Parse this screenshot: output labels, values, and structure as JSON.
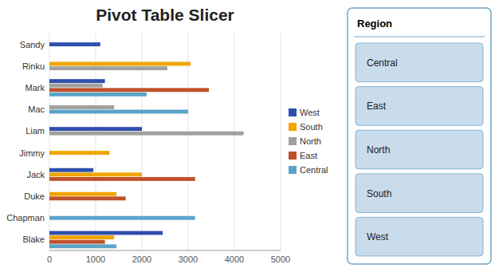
{
  "chart_data": {
    "type": "bar",
    "orientation": "horizontal",
    "title": "Pivot Table Slicer",
    "categories": [
      "Sandy",
      "Rinku",
      "Mark",
      "Mac",
      "Liam",
      "Jimmy",
      "Jack",
      "Duke",
      "Chapman",
      "Blake"
    ],
    "series": [
      {
        "name": "West",
        "color": "#2E4FAE",
        "values": [
          1100,
          0,
          1200,
          0,
          2000,
          0,
          950,
          0,
          0,
          2450
        ]
      },
      {
        "name": "South",
        "color": "#F0A500",
        "values": [
          0,
          3050,
          0,
          0,
          0,
          1300,
          2000,
          1450,
          0,
          1400
        ]
      },
      {
        "name": "North",
        "color": "#A0A0A0",
        "values": [
          0,
          2550,
          1150,
          1400,
          4200,
          0,
          0,
          0,
          0,
          0
        ]
      },
      {
        "name": "East",
        "color": "#C0522B",
        "values": [
          0,
          0,
          3450,
          0,
          0,
          0,
          3150,
          1650,
          0,
          1200
        ]
      },
      {
        "name": "Central",
        "color": "#5BA3C9",
        "values": [
          0,
          0,
          2100,
          3000,
          0,
          0,
          0,
          0,
          3150,
          1450
        ]
      }
    ],
    "xlim": [
      0,
      5000
    ],
    "xticks": [
      0,
      1000,
      2000,
      3000,
      4000,
      5000
    ],
    "grid": true,
    "legend": "right",
    "slicer": {
      "title": "Region",
      "items": [
        "Central",
        "East",
        "North",
        "South",
        "West"
      ]
    }
  }
}
